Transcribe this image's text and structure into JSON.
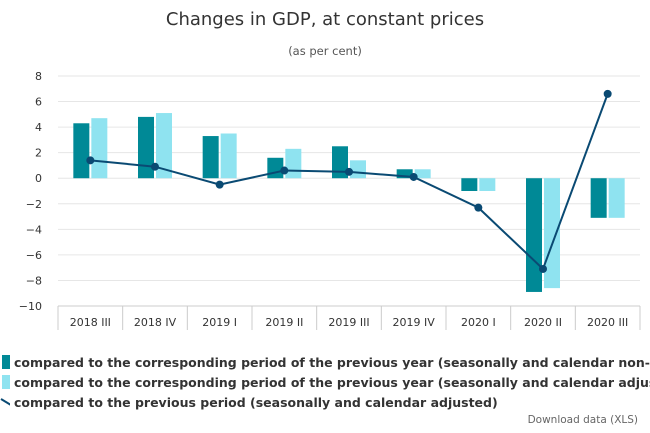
{
  "chart_data": {
    "type": "bar",
    "title": "Changes in GDP, at constant prices",
    "subtitle": "(as per cent)",
    "xlabel": "",
    "ylabel": "",
    "ylim": [
      -10,
      8
    ],
    "yticks": [
      8,
      6,
      4,
      2,
      0,
      -2,
      -4,
      -6,
      -8,
      -10
    ],
    "ytick_labels": [
      "8",
      "6",
      "4",
      "2",
      "0",
      "−2",
      "−4",
      "−6",
      "−8",
      "−10"
    ],
    "categories": [
      "2018 III",
      "2018 IV",
      "2019 I",
      "2019 II",
      "2019 III",
      "2019 IV",
      "2020 I",
      "2020 II",
      "2020 III"
    ],
    "grid": true,
    "legend_position": "bottom-left",
    "series": [
      {
        "name": "compared to the corresponding period of the previous year (seasonally and calendar non-adjusted)",
        "legend_label": "compared to the corresponding period of the previous year (seasonally and calendar non-adju",
        "type": "bar",
        "color": "#008996",
        "values": [
          4.3,
          4.8,
          3.3,
          1.6,
          2.5,
          0.7,
          -1.0,
          -8.9,
          -3.1
        ]
      },
      {
        "name": "compared to the corresponding period of the previous year (seasonally and calendar adjusted)",
        "legend_label": "compared to the corresponding period of the previous year (seasonally and calendar adjusted)",
        "type": "bar",
        "color": "#8fe3f0",
        "values": [
          4.7,
          5.1,
          3.5,
          2.3,
          1.4,
          0.7,
          -1.0,
          -8.6,
          -3.1
        ]
      },
      {
        "name": "compared to the previous period (seasonally and calendar adjusted)",
        "legend_label": "compared to the previous period (seasonally and calendar adjusted)",
        "type": "line",
        "color": "#0a4a73",
        "values": [
          1.4,
          0.9,
          -0.5,
          0.6,
          0.5,
          0.1,
          -2.3,
          -7.1,
          6.6
        ]
      }
    ]
  },
  "download_link": "Download data (XLS)"
}
